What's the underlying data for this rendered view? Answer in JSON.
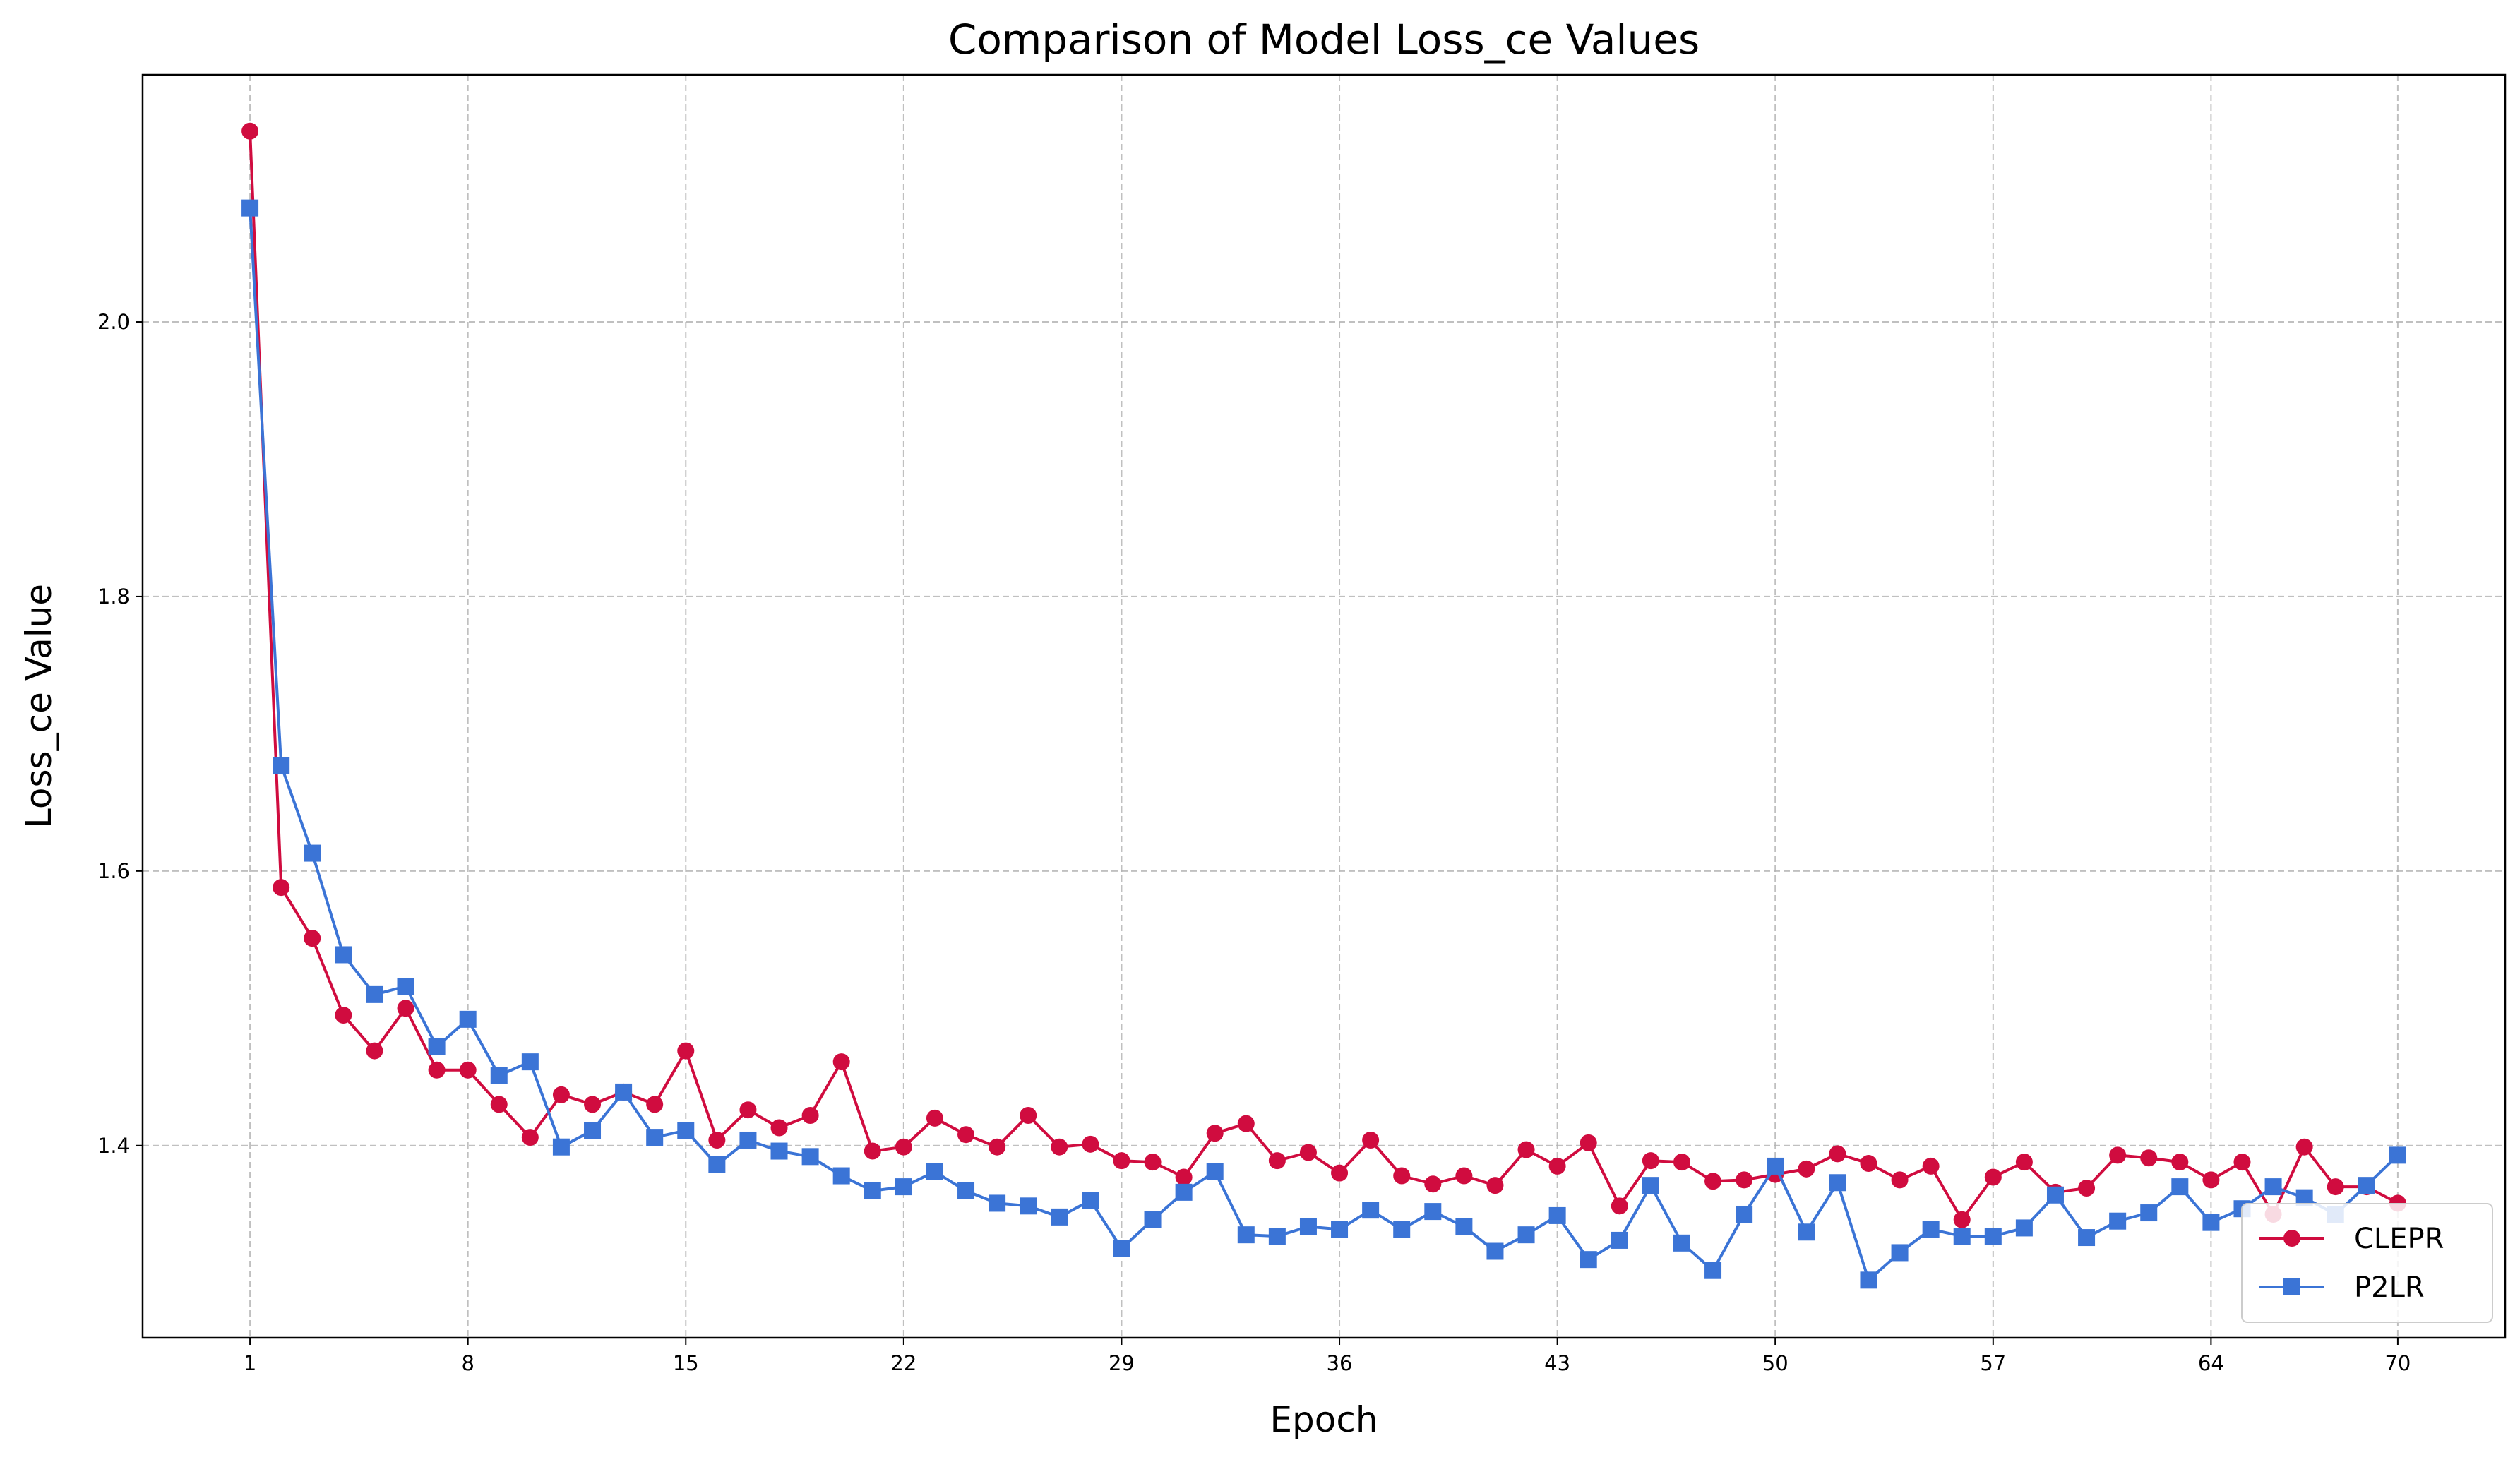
{
  "chart_data": {
    "type": "line",
    "title": "Comparison of Model Loss_ce Values",
    "xlabel": "Epoch",
    "ylabel": "Loss_ce Value",
    "xlim": [
      -2.45,
      73.45
    ],
    "ylim": [
      1.26,
      2.18
    ],
    "x_ticks": [
      1,
      8,
      15,
      22,
      29,
      36,
      43,
      50,
      57,
      64,
      70
    ],
    "y_ticks": [
      1.4,
      1.6,
      1.8,
      2.0
    ],
    "y_tick_labels": [
      "1.4",
      "1.6",
      "1.8",
      "2.0"
    ],
    "grid": true,
    "legend_position": "lower right",
    "series": [
      {
        "name": "CLEPR",
        "color": "#d00c3f",
        "marker": "circle",
        "x": [
          1,
          2,
          3,
          4,
          5,
          6,
          7,
          8,
          9,
          10,
          11,
          12,
          13,
          14,
          15,
          16,
          17,
          18,
          19,
          20,
          21,
          22,
          23,
          24,
          25,
          26,
          27,
          28,
          29,
          30,
          31,
          32,
          33,
          34,
          35,
          36,
          37,
          38,
          39,
          40,
          41,
          42,
          43,
          44,
          45,
          46,
          47,
          48,
          49,
          50,
          51,
          52,
          53,
          54,
          55,
          56,
          57,
          58,
          59,
          60,
          61,
          62,
          63,
          64,
          65,
          66,
          67,
          68,
          69,
          70
        ],
        "values": [
          2.139,
          1.588,
          1.551,
          1.495,
          1.469,
          1.5,
          1.455,
          1.455,
          1.43,
          1.406,
          1.437,
          1.43,
          1.439,
          1.43,
          1.469,
          1.404,
          1.426,
          1.413,
          1.422,
          1.461,
          1.396,
          1.399,
          1.42,
          1.408,
          1.399,
          1.422,
          1.399,
          1.401,
          1.389,
          1.388,
          1.377,
          1.409,
          1.416,
          1.389,
          1.395,
          1.38,
          1.404,
          1.378,
          1.372,
          1.378,
          1.371,
          1.397,
          1.385,
          1.402,
          1.356,
          1.389,
          1.388,
          1.374,
          1.375,
          1.379,
          1.383,
          1.394,
          1.387,
          1.375,
          1.385,
          1.346,
          1.377,
          1.388,
          1.366,
          1.369,
          1.393,
          1.391,
          1.388,
          1.375,
          1.388,
          1.35,
          1.399,
          1.37,
          1.37,
          1.358
        ]
      },
      {
        "name": "P2LR",
        "color": "#3b74d6",
        "marker": "square",
        "x": [
          1,
          2,
          3,
          4,
          5,
          6,
          7,
          8,
          9,
          10,
          11,
          12,
          13,
          14,
          15,
          16,
          17,
          18,
          19,
          20,
          21,
          22,
          23,
          24,
          25,
          26,
          27,
          28,
          29,
          30,
          31,
          32,
          33,
          34,
          35,
          36,
          37,
          38,
          39,
          40,
          41,
          42,
          43,
          44,
          45,
          46,
          47,
          48,
          49,
          50,
          51,
          52,
          53,
          54,
          55,
          56,
          57,
          58,
          59,
          60,
          61,
          62,
          63,
          64,
          65,
          66,
          67,
          68,
          69,
          70
        ],
        "values": [
          2.083,
          1.677,
          1.613,
          1.539,
          1.51,
          1.516,
          1.472,
          1.492,
          1.451,
          1.461,
          1.399,
          1.411,
          1.439,
          1.406,
          1.411,
          1.386,
          1.404,
          1.396,
          1.392,
          1.378,
          1.367,
          1.37,
          1.381,
          1.367,
          1.358,
          1.356,
          1.348,
          1.36,
          1.325,
          1.346,
          1.366,
          1.381,
          1.335,
          1.334,
          1.341,
          1.339,
          1.353,
          1.339,
          1.352,
          1.341,
          1.323,
          1.335,
          1.349,
          1.317,
          1.331,
          1.371,
          1.329,
          1.309,
          1.35,
          1.385,
          1.337,
          1.373,
          1.302,
          1.322,
          1.339,
          1.334,
          1.334,
          1.34,
          1.364,
          1.333,
          1.345,
          1.351,
          1.37,
          1.344,
          1.354,
          1.37,
          1.362,
          1.35,
          1.371,
          1.393
        ]
      }
    ]
  }
}
